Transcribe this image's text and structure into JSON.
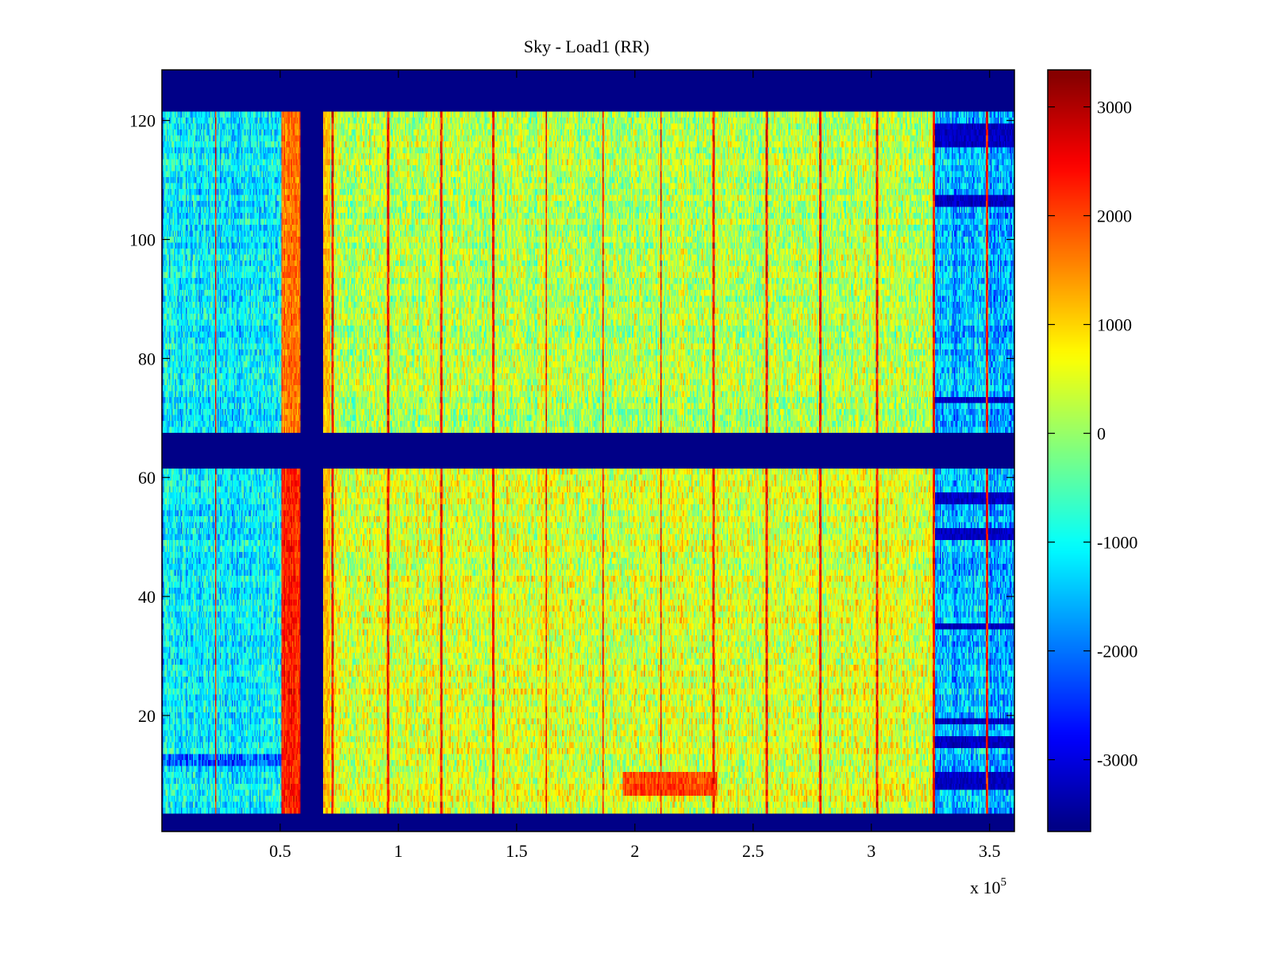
{
  "chart_data": {
    "type": "heatmap",
    "title": "Sky - Load1 (RR)",
    "xlabel": "",
    "ylabel": "",
    "x_exponent_label": "x 10",
    "x_exponent_power": "5",
    "xlim": [
      0,
      3.605
    ],
    "ylim": [
      0.5,
      128.5
    ],
    "xticks": [
      0.5,
      1,
      1.5,
      2,
      2.5,
      3,
      3.5
    ],
    "xtick_labels": [
      "0.5",
      "1",
      "1.5",
      "2",
      "2.5",
      "3",
      "3.5"
    ],
    "yticks": [
      20,
      40,
      60,
      80,
      100,
      120
    ],
    "ytick_labels": [
      "20",
      "40",
      "60",
      "80",
      "100",
      "120"
    ],
    "colormap": "jet",
    "colormap_steps": 64,
    "clim": [
      -3660,
      3340
    ],
    "colorbar": {
      "ticks": [
        3000,
        2000,
        1000,
        0,
        -1000,
        -2000,
        -3000
      ],
      "tick_labels": [
        "3000",
        "2000",
        "1000",
        "0",
        "-1000",
        "-2000",
        "-3000"
      ],
      "location": "right"
    },
    "grid": false,
    "n_rows": 128,
    "n_cols": 720,
    "structure": {
      "masked_row_ranges": [
        [
          1,
          3
        ],
        [
          62,
          67
        ],
        [
          122,
          128
        ]
      ],
      "masked_x_range": [
        0.587,
        0.683
      ],
      "hot_band_x_range": [
        0.505,
        0.587
      ],
      "hot_band_value_upper": 1700,
      "hot_band_value_lower": 2300,
      "left_region_x_range": [
        0,
        0.505
      ],
      "left_region_value": -1100,
      "main_region_value": 200,
      "right_region_start": 3.265,
      "right_region_value": -1500,
      "right_dark_rows": [
        8,
        9,
        10,
        15,
        16,
        19,
        35,
        50,
        51,
        56,
        57,
        73,
        106,
        107,
        116,
        117,
        118,
        119
      ],
      "left_dark_rows": [
        12,
        13
      ],
      "stripe_x_positions": [
        0.228,
        0.72,
        0.957,
        1.18,
        1.4,
        1.625,
        1.865,
        2.11,
        2.335,
        2.56,
        2.785,
        3.025,
        3.265,
        3.49
      ],
      "stripe_value": 3000,
      "warm_patch": {
        "x_range": [
          1.95,
          2.35
        ],
        "row_range": [
          7,
          10
        ],
        "value": 2000
      },
      "noise_amplitude": 700
    }
  }
}
